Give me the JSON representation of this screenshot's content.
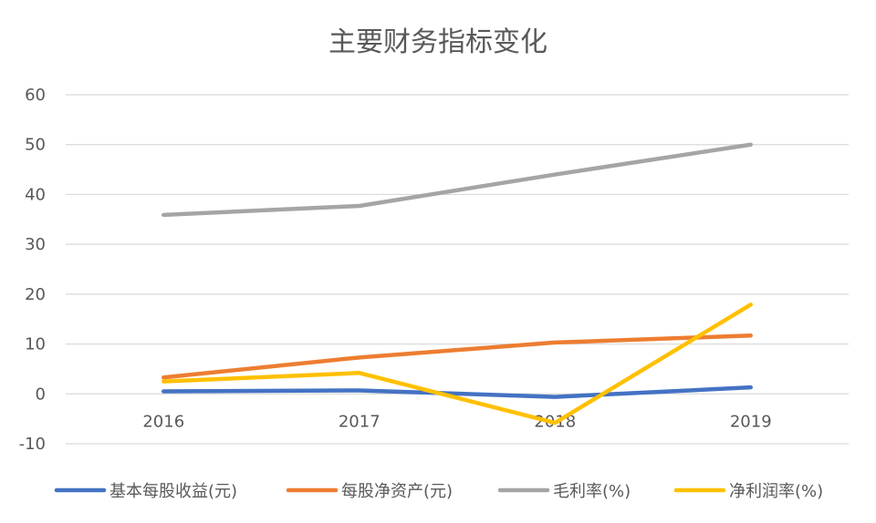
{
  "chart_data": {
    "type": "line",
    "title": "主要财务指标变化",
    "xlabel": "",
    "ylabel": "",
    "categories": [
      "2016",
      "2017",
      "2018",
      "2019"
    ],
    "ylim": [
      -10,
      60
    ],
    "yticks": [
      "-10",
      "0",
      "10",
      "20",
      "30",
      "40",
      "50",
      "60"
    ],
    "grid": true,
    "legend_position": "bottom",
    "series": [
      {
        "name": "基本每股收益(元)",
        "color": "#4472c4",
        "values": [
          0.5,
          0.7,
          -0.6,
          1.3
        ]
      },
      {
        "name": "每股净资产(元)",
        "color": "#ed7d31",
        "values": [
          3.3,
          7.3,
          10.3,
          11.7
        ]
      },
      {
        "name": "毛利率(%)",
        "color": "#a5a5a5",
        "values": [
          35.9,
          37.7,
          44.0,
          50.0
        ]
      },
      {
        "name": "净利润率(%)",
        "color": "#ffc000",
        "values": [
          2.5,
          4.2,
          -5.8,
          17.9
        ]
      }
    ]
  }
}
